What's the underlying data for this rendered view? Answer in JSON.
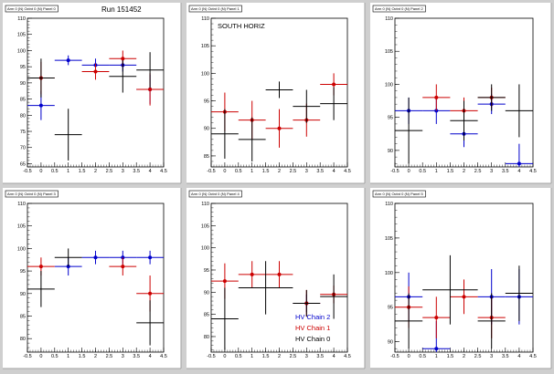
{
  "window": {
    "background": "#cfcfcf",
    "pad_background": "#ffffff",
    "frame_background": "#ffffff"
  },
  "legend": {
    "entries": [
      {
        "label": "HV Chain 2",
        "color": "#0000cc"
      },
      {
        "label": "HV Chain 1",
        "color": "#cc0000"
      },
      {
        "label": "HV Chain 0",
        "color": "#000000"
      }
    ]
  },
  "chart_data": [
    {
      "type": "scatter",
      "pad_title": "Arm 0 (N) Octnt 0 (N) Panel 0",
      "annotation": "Run 151452",
      "xlim": [
        -0.5,
        4.5
      ],
      "ylim": [
        64,
        110
      ],
      "xticks": [
        -0.5,
        0,
        0.5,
        1,
        1.5,
        2,
        2.5,
        3,
        3.5,
        4,
        4.5
      ],
      "yticks": [
        65,
        70,
        75,
        80,
        85,
        90,
        95,
        100,
        105,
        110
      ],
      "series": [
        {
          "color": "#0000cc",
          "points": [
            {
              "x": 0,
              "y": 83,
              "xerr": 0.5,
              "yerr": 4.5,
              "marker": true
            },
            {
              "x": 1,
              "y": 97,
              "xerr": 0.5,
              "yerr": 1.5,
              "marker": true
            },
            {
              "x": 2,
              "y": 95.5,
              "xerr": 0.5,
              "yerr": 2,
              "marker": true
            },
            {
              "x": 3,
              "y": 95.5,
              "xerr": 0.5,
              "yerr": 2,
              "marker": true
            },
            {
              "x": 4,
              "y": 88,
              "xerr": 0.5,
              "yerr": 4.5,
              "marker": true
            }
          ]
        },
        {
          "color": "#cc0000",
          "points": [
            {
              "x": 0,
              "y": 91.5,
              "xerr": 0.5,
              "yerr": 5,
              "marker": true
            },
            {
              "x": 2,
              "y": 93.5,
              "xerr": 0.5,
              "yerr": 2.5,
              "marker": true
            },
            {
              "x": 3,
              "y": 97.5,
              "xerr": 0.5,
              "yerr": 2.5,
              "marker": true
            },
            {
              "x": 4,
              "y": 88,
              "xerr": 0.5,
              "yerr": 5,
              "marker": true
            }
          ]
        },
        {
          "color": "#000000",
          "points": [
            {
              "x": 0,
              "y": 91.5,
              "xerr": 0.5,
              "yerr": 6,
              "marker": false
            },
            {
              "x": 1,
              "y": 74,
              "xerr": 0.5,
              "yerr": 8,
              "marker": false
            },
            {
              "x": 3,
              "y": 92,
              "xerr": 0.5,
              "yerr": 5,
              "marker": false
            },
            {
              "x": 4,
              "y": 94,
              "xerr": 0.5,
              "yerr": 5.5,
              "marker": false
            }
          ]
        }
      ]
    },
    {
      "type": "scatter",
      "pad_title": "Arm 0 (N) Octnt 0 (N) Panel 1",
      "annotation": "SOUTH HORIZ",
      "xlim": [
        -0.5,
        4.5
      ],
      "ylim": [
        83,
        110
      ],
      "xticks": [
        -0.5,
        0,
        0.5,
        1,
        1.5,
        2,
        2.5,
        3,
        3.5,
        4,
        4.5
      ],
      "yticks": [
        85,
        90,
        95,
        100,
        105,
        110
      ],
      "series": [
        {
          "color": "#cc0000",
          "points": [
            {
              "x": 0,
              "y": 93,
              "xerr": 0.5,
              "yerr": 3.5,
              "marker": true
            },
            {
              "x": 1,
              "y": 91.5,
              "xerr": 0.5,
              "yerr": 3.5,
              "marker": true
            },
            {
              "x": 2,
              "y": 90,
              "xerr": 0.5,
              "yerr": 3.5,
              "marker": true
            },
            {
              "x": 3,
              "y": 91.5,
              "xerr": 0.5,
              "yerr": 3,
              "marker": true
            },
            {
              "x": 4,
              "y": 98,
              "xerr": 0.5,
              "yerr": 2,
              "marker": true
            }
          ]
        },
        {
          "color": "#000000",
          "points": [
            {
              "x": 0,
              "y": 89,
              "xerr": 0.5,
              "yerr": 4.5,
              "marker": false
            },
            {
              "x": 1,
              "y": 88,
              "xerr": 0.5,
              "yerr": 4,
              "marker": false
            },
            {
              "x": 2,
              "y": 97,
              "xerr": 0.5,
              "yerr": 1.5,
              "marker": false
            },
            {
              "x": 3,
              "y": 94,
              "xerr": 0.5,
              "yerr": 3,
              "marker": false
            },
            {
              "x": 4,
              "y": 94.5,
              "xerr": 0.5,
              "yerr": 3,
              "marker": false
            }
          ]
        }
      ]
    },
    {
      "type": "scatter",
      "pad_title": "Arm 0 (N) Octnt 0 (N) Panel 2",
      "annotation": "",
      "xlim": [
        -0.5,
        4.5
      ],
      "ylim": [
        87.5,
        110
      ],
      "xticks": [
        -0.5,
        0,
        0.5,
        1,
        1.5,
        2,
        2.5,
        3,
        3.5,
        4,
        4.5
      ],
      "yticks": [
        90,
        95,
        100,
        105,
        110
      ],
      "series": [
        {
          "color": "#0000cc",
          "points": [
            {
              "x": 0,
              "y": 96,
              "xerr": 0.5,
              "yerr": 2,
              "marker": true
            },
            {
              "x": 1,
              "y": 96,
              "xerr": 0.5,
              "yerr": 2,
              "marker": true
            },
            {
              "x": 2,
              "y": 92.5,
              "xerr": 0.5,
              "yerr": 2,
              "marker": true
            },
            {
              "x": 3,
              "y": 97,
              "xerr": 0.5,
              "yerr": 1.5,
              "marker": true
            },
            {
              "x": 4,
              "y": 88,
              "xerr": 0.5,
              "yerr": 3,
              "marker": true
            }
          ]
        },
        {
          "color": "#cc0000",
          "points": [
            {
              "x": 1,
              "y": 98,
              "xerr": 0.5,
              "yerr": 2,
              "marker": true
            },
            {
              "x": 2,
              "y": 96,
              "xerr": 0.5,
              "yerr": 2,
              "marker": true
            },
            {
              "x": 3,
              "y": 98,
              "xerr": 0.5,
              "yerr": 1.5,
              "marker": true
            }
          ]
        },
        {
          "color": "#000000",
          "points": [
            {
              "x": 0,
              "y": 93,
              "xerr": 0.5,
              "yerr": 5,
              "marker": false
            },
            {
              "x": 2,
              "y": 94.5,
              "xerr": 0.5,
              "yerr": 3,
              "marker": false
            },
            {
              "x": 3,
              "y": 98,
              "xerr": 0.5,
              "yerr": 2,
              "marker": false
            },
            {
              "x": 4,
              "y": 96,
              "xerr": 0.5,
              "yerr": 4,
              "marker": false
            }
          ]
        }
      ]
    },
    {
      "type": "scatter",
      "pad_title": "Arm 0 (N) Octnt 0 (N) Panel 3",
      "annotation": "",
      "xlim": [
        -0.5,
        4.5
      ],
      "ylim": [
        77,
        110
      ],
      "xticks": [
        -0.5,
        0,
        0.5,
        1,
        1.5,
        2,
        2.5,
        3,
        3.5,
        4,
        4.5
      ],
      "yticks": [
        80,
        85,
        90,
        95,
        100,
        105,
        110
      ],
      "series": [
        {
          "color": "#0000cc",
          "points": [
            {
              "x": 1,
              "y": 96,
              "xerr": 0.5,
              "yerr": 2,
              "marker": true
            },
            {
              "x": 2,
              "y": 98,
              "xerr": 0.5,
              "yerr": 1.5,
              "marker": true
            },
            {
              "x": 3,
              "y": 98,
              "xerr": 0.5,
              "yerr": 1.5,
              "marker": true
            },
            {
              "x": 4,
              "y": 98,
              "xerr": 0.5,
              "yerr": 1.5,
              "marker": true
            }
          ]
        },
        {
          "color": "#cc0000",
          "points": [
            {
              "x": 0,
              "y": 96,
              "xerr": 0.5,
              "yerr": 2,
              "marker": true
            },
            {
              "x": 3,
              "y": 96,
              "xerr": 0.5,
              "yerr": 2,
              "marker": true
            },
            {
              "x": 4,
              "y": 90,
              "xerr": 0.5,
              "yerr": 4,
              "marker": true
            }
          ]
        },
        {
          "color": "#000000",
          "points": [
            {
              "x": 0,
              "y": 91,
              "xerr": 0.5,
              "yerr": 4,
              "marker": false
            },
            {
              "x": 1,
              "y": 98,
              "xerr": 0.5,
              "yerr": 2,
              "marker": false
            },
            {
              "x": 4,
              "y": 83.5,
              "xerr": 0.5,
              "yerr": 5,
              "marker": false
            }
          ]
        }
      ]
    },
    {
      "type": "scatter",
      "pad_title": "Arm 0 (N) Octnt 0 (N) Panel 4",
      "annotation": "",
      "xlim": [
        -0.5,
        4.5
      ],
      "ylim": [
        76.5,
        110
      ],
      "xticks": [
        -0.5,
        0,
        0.5,
        1,
        1.5,
        2,
        2.5,
        3,
        3.5,
        4,
        4.5
      ],
      "yticks": [
        80,
        85,
        90,
        95,
        100,
        105,
        110
      ],
      "series": [
        {
          "color": "#0000cc",
          "points": [
            {
              "x": 3,
              "y": 87.5,
              "xerr": 0.5,
              "yerr": 2,
              "marker": true
            }
          ]
        },
        {
          "color": "#cc0000",
          "points": [
            {
              "x": 0,
              "y": 92.5,
              "xerr": 0.5,
              "yerr": 4,
              "marker": true
            },
            {
              "x": 1,
              "y": 94,
              "xerr": 0.5,
              "yerr": 3,
              "marker": true
            },
            {
              "x": 2,
              "y": 94,
              "xerr": 0.5,
              "yerr": 3,
              "marker": true
            },
            {
              "x": 3,
              "y": 87.5,
              "xerr": 0.5,
              "yerr": 3,
              "marker": true
            },
            {
              "x": 4,
              "y": 89.5,
              "xerr": 0.5,
              "yerr": 2,
              "marker": true
            }
          ]
        },
        {
          "color": "#000000",
          "points": [
            {
              "x": 0,
              "y": 84,
              "xerr": 0.5,
              "yerr": 7,
              "marker": false
            },
            {
              "x": 1.5,
              "y": 91,
              "xerr": 1,
              "yerr": 6,
              "marker": false
            },
            {
              "x": 3,
              "y": 87.5,
              "xerr": 0.5,
              "yerr": 3,
              "marker": false
            },
            {
              "x": 4,
              "y": 89,
              "xerr": 0.5,
              "yerr": 5,
              "marker": false
            }
          ]
        }
      ]
    },
    {
      "type": "scatter",
      "pad_title": "Arm 0 (N) Octnt 0 (N) Panel 5",
      "annotation": "",
      "xlim": [
        -0.5,
        4.5
      ],
      "ylim": [
        88.5,
        110
      ],
      "xticks": [
        -0.5,
        0,
        0.5,
        1,
        1.5,
        2,
        2.5,
        3,
        3.5,
        4,
        4.5
      ],
      "yticks": [
        90,
        95,
        100,
        105,
        110
      ],
      "series": [
        {
          "color": "#0000cc",
          "points": [
            {
              "x": 0,
              "y": 96.5,
              "xerr": 0.5,
              "yerr": 3.5,
              "marker": true
            },
            {
              "x": 1,
              "y": 89,
              "xerr": 0.5,
              "yerr": 4,
              "marker": true
            },
            {
              "x": 3,
              "y": 96.5,
              "xerr": 0.5,
              "yerr": 4,
              "marker": true
            },
            {
              "x": 4,
              "y": 96.5,
              "xerr": 0.5,
              "yerr": 4,
              "marker": true
            }
          ]
        },
        {
          "color": "#cc0000",
          "points": [
            {
              "x": 0,
              "y": 95,
              "xerr": 0.5,
              "yerr": 3,
              "marker": true
            },
            {
              "x": 1,
              "y": 93.5,
              "xerr": 0.5,
              "yerr": 3,
              "marker": true
            },
            {
              "x": 2,
              "y": 96.5,
              "xerr": 0.5,
              "yerr": 2.5,
              "marker": true
            },
            {
              "x": 3,
              "y": 93.5,
              "xerr": 0.5,
              "yerr": 3,
              "marker": true
            }
          ]
        },
        {
          "color": "#000000",
          "points": [
            {
              "x": 0,
              "y": 93,
              "xerr": 0.5,
              "yerr": 4,
              "marker": false
            },
            {
              "x": 1.5,
              "y": 97.5,
              "xerr": 1,
              "yerr": 5,
              "marker": false
            },
            {
              "x": 3,
              "y": 93,
              "xerr": 0.5,
              "yerr": 4,
              "marker": false
            },
            {
              "x": 4,
              "y": 97,
              "xerr": 0.5,
              "yerr": 4,
              "marker": false
            }
          ]
        }
      ]
    }
  ]
}
